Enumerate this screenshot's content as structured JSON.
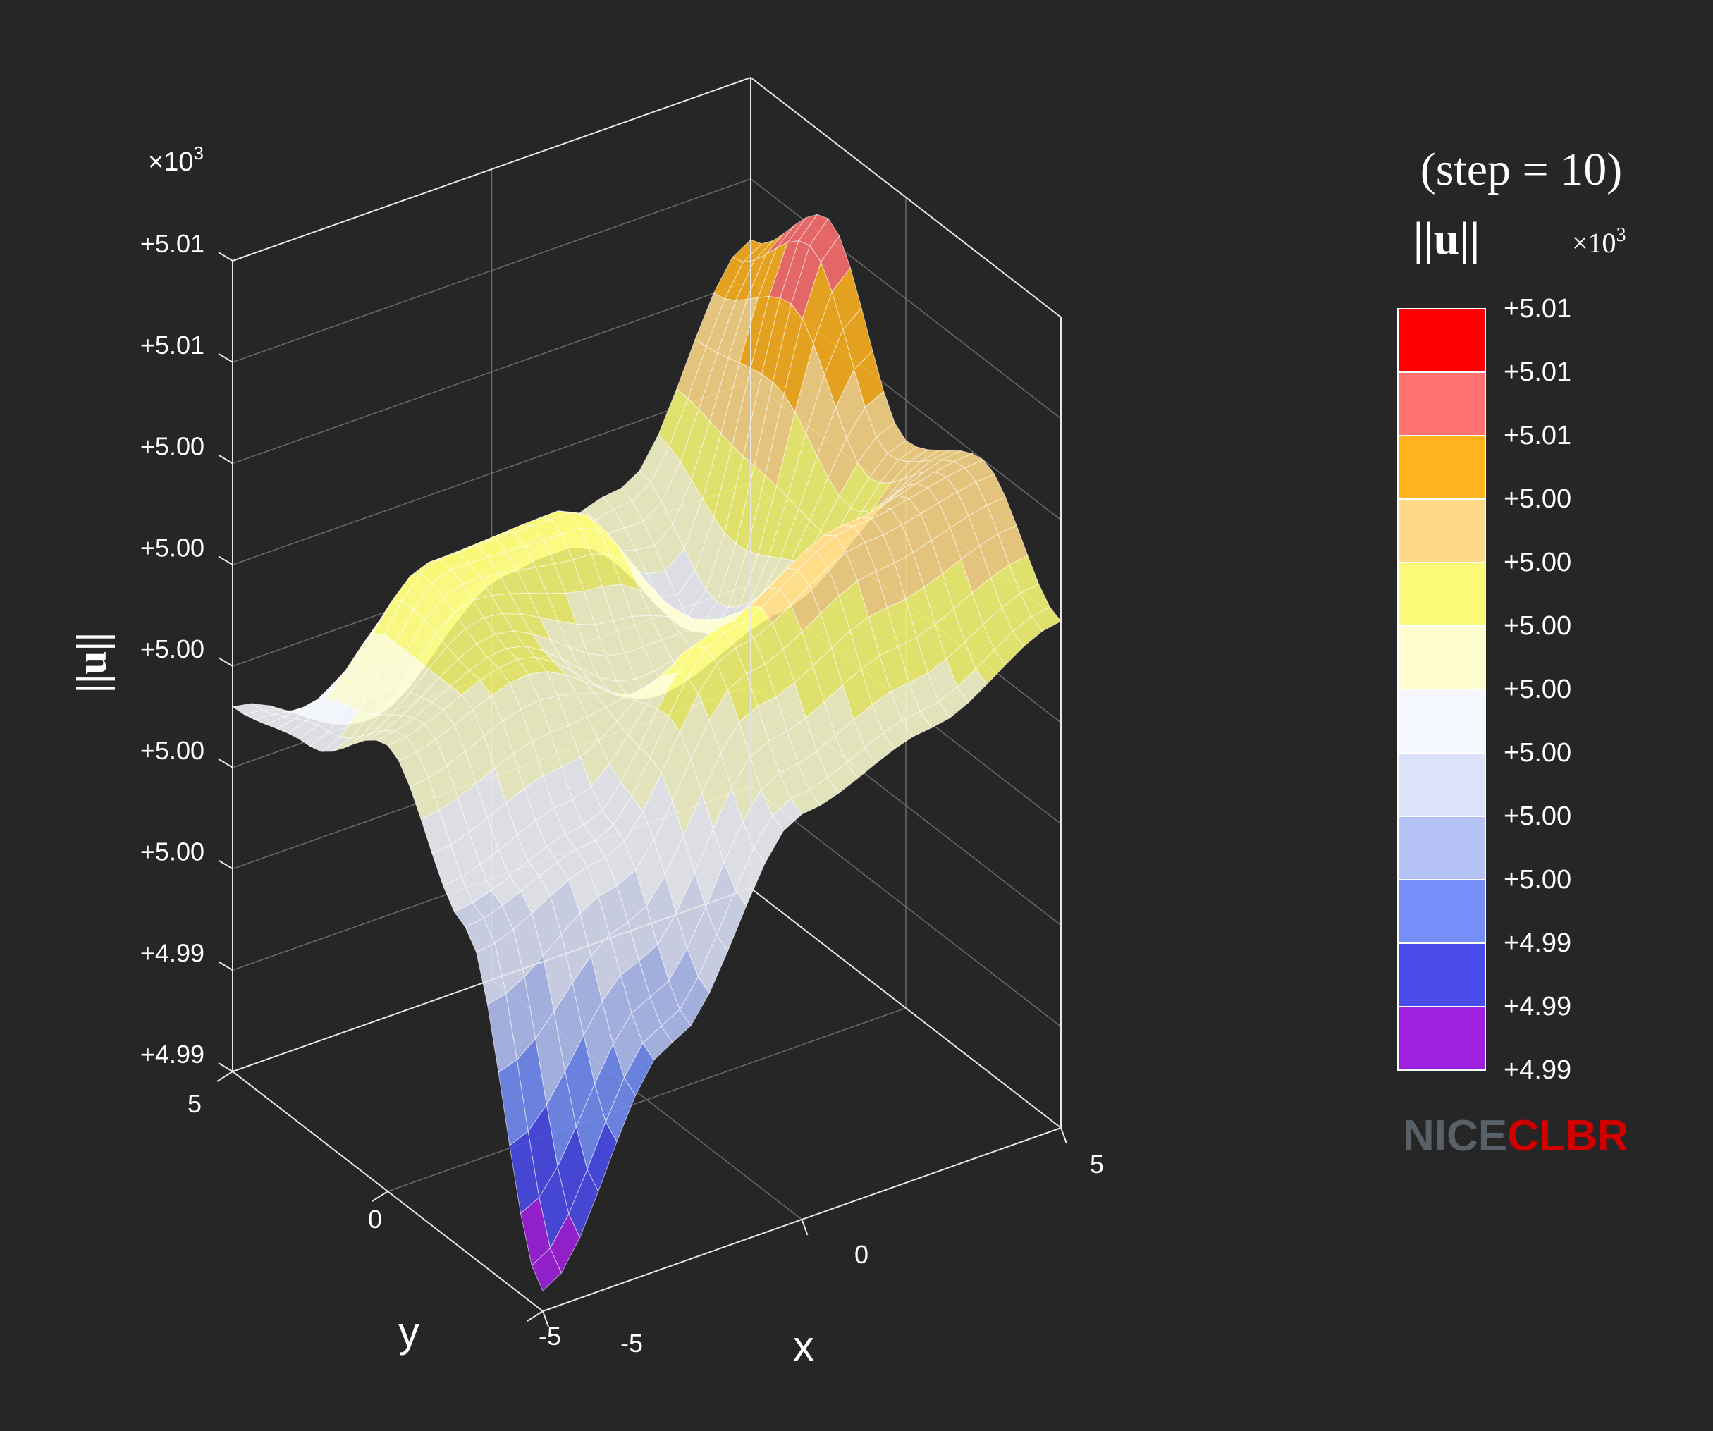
{
  "chart_data": {
    "type": "surface",
    "title": "",
    "xlabel": "x",
    "ylabel": "y",
    "zlabel": "||u||",
    "z_multiplier": "×10³",
    "x_ticks": [
      "-5",
      "0",
      "5"
    ],
    "y_ticks": [
      "-5",
      "0",
      "5"
    ],
    "z_ticks": [
      "+4.99",
      "+4.99",
      "+5.00",
      "+5.00",
      "+5.00",
      "+5.00",
      "+5.00",
      "+5.01",
      "+5.01"
    ],
    "xlim": [
      -5,
      5
    ],
    "ylim": [
      -5,
      5
    ],
    "zlim_thousands": [
      4.99,
      5.01
    ],
    "grid": true,
    "description_grid": "5x5 sampled heights (x = -5..5, y = -5..5), units ×10³",
    "x": [
      -5,
      -2.5,
      0,
      2.5,
      5
    ],
    "y": [
      -5,
      -2.5,
      0,
      2.5,
      5
    ],
    "z": [
      [
        4.9905,
        4.9955,
        5.0,
        5.001,
        5.0025
      ],
      [
        4.998,
        4.999,
        5.003,
        5.0045,
        5.005
      ],
      [
        5.001,
        5.002,
        5.0,
        5.001,
        5.004
      ],
      [
        4.9995,
        5.003,
        5.003,
        4.999,
        5.008
      ],
      [
        4.999,
        4.9975,
        5.0,
        5.001,
        5.006
      ]
    ]
  },
  "colorbar": {
    "title_line1": "(step = 10)",
    "title_line2": "||u||",
    "multiplier": "×10³",
    "colors": [
      "#ff0000",
      "#ff7070",
      "#ffb31f",
      "#ffd98a",
      "#fafa78",
      "#fdfdd0",
      "#f6f8ff",
      "#dde2fb",
      "#b4c2f6",
      "#7490f8",
      "#4a4cec",
      "#a020e0"
    ],
    "labels": [
      "+5.01",
      "+5.01",
      "+5.01",
      "+5.00",
      "+5.00",
      "+5.00",
      "+5.00",
      "+5.00",
      "+5.00",
      "+5.00",
      "+4.99",
      "+4.99",
      "+4.99"
    ]
  },
  "logo": {
    "part1": "NICE",
    "part2": "CLBR",
    "color1": "#5a6068",
    "color2": "#d00000"
  }
}
